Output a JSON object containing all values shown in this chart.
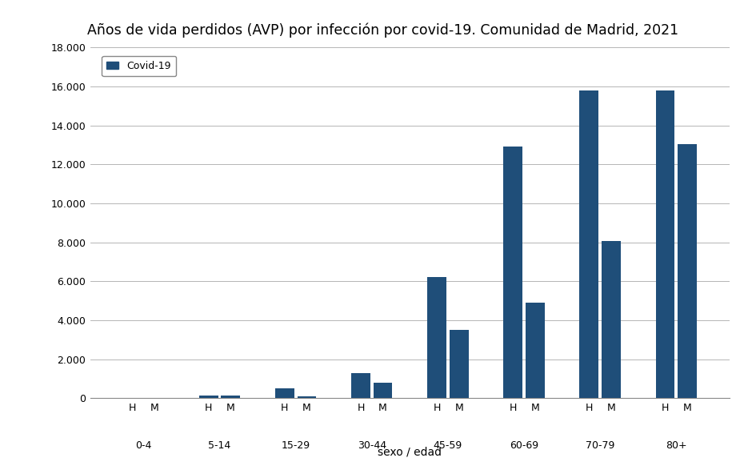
{
  "title": "Años de vida perdidos (AVP) por infección por covid-19. Comunidad de Madrid, 2021",
  "xlabel": "sexo / edad",
  "ylabel": "",
  "bar_color": "#1f4e79",
  "legend_label": "Covid-19",
  "age_groups": [
    "0-4",
    "5-14",
    "15-29",
    "30-44",
    "45-59",
    "60-69",
    "70-79",
    "80+"
  ],
  "H_values": [
    0,
    120,
    500,
    1280,
    6200,
    12900,
    15800,
    15800
  ],
  "M_values": [
    0,
    140,
    100,
    800,
    3500,
    4900,
    8050,
    13050
  ],
  "ylim": [
    0,
    18000
  ],
  "yticks": [
    0,
    2000,
    4000,
    6000,
    8000,
    10000,
    12000,
    14000,
    16000,
    18000
  ],
  "ytick_labels": [
    "0",
    "2.000",
    "4.000",
    "6.000",
    "8.000",
    "10.000",
    "12.000",
    "14.000",
    "16.000",
    "18.000"
  ],
  "background_color": "#ffffff",
  "title_fontsize": 12.5,
  "axis_fontsize": 10,
  "tick_fontsize": 9
}
